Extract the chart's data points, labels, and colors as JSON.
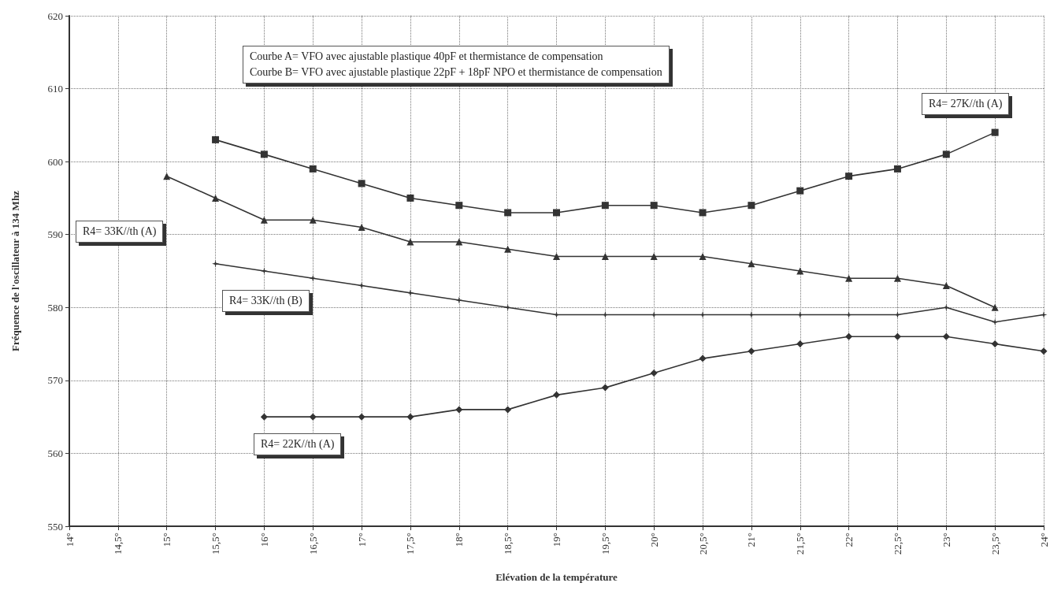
{
  "chart_data": {
    "type": "line",
    "xlabel": "Elévation de la température",
    "ylabel": "Fréquence de l'oscillateur à 134 Mhz",
    "categories": [
      "14°",
      "14,5°",
      "15°",
      "15,5°",
      "16°",
      "16,5°",
      "17°",
      "17,5°",
      "18°",
      "18,5°",
      "19°",
      "19,5°",
      "20°",
      "20,5°",
      "21°",
      "21,5°",
      "22°",
      "22,5°",
      "23°",
      "23,5°",
      "24°"
    ],
    "series": [
      {
        "color": "#333333",
        "marker": "square",
        "values": [
          null,
          null,
          null,
          603,
          601,
          599,
          597,
          595,
          594,
          593,
          593,
          594,
          594,
          593,
          594,
          596,
          598,
          599,
          601,
          604,
          null
        ]
      },
      {
        "color": "#333333",
        "marker": "triangle",
        "values": [
          null,
          null,
          598,
          595,
          592,
          592,
          591,
          589,
          589,
          588,
          587,
          587,
          587,
          587,
          586,
          585,
          584,
          584,
          583,
          580,
          null
        ]
      },
      {
        "color": "#333333",
        "marker": "star",
        "values": [
          null,
          null,
          null,
          586,
          585,
          584,
          583,
          582,
          581,
          580,
          579,
          579,
          579,
          579,
          579,
          579,
          579,
          579,
          580,
          578,
          579
        ]
      },
      {
        "color": "#333333",
        "marker": "diamond",
        "values": [
          null,
          null,
          null,
          null,
          565,
          565,
          565,
          565,
          566,
          566,
          568,
          569,
          571,
          573,
          574,
          575,
          576,
          576,
          576,
          575,
          574
        ]
      }
    ],
    "ylim": [
      550,
      620
    ],
    "yticks": [
      550,
      560,
      570,
      580,
      590,
      600,
      610,
      620
    ],
    "grid": true,
    "line_style": "solid",
    "annotations": [
      "Courbe A= VFO avec ajustable plastique 40pF  et  thermistance de compensation",
      "Courbe B= VFO avec ajustable plastique 22pF + 18pF NPO et thermistance de compensation",
      "R4= 27K//th  (A)",
      "R4= 33K//th (A)",
      "R4= 33K//th (B)",
      "R4= 22K//th (A)"
    ]
  }
}
